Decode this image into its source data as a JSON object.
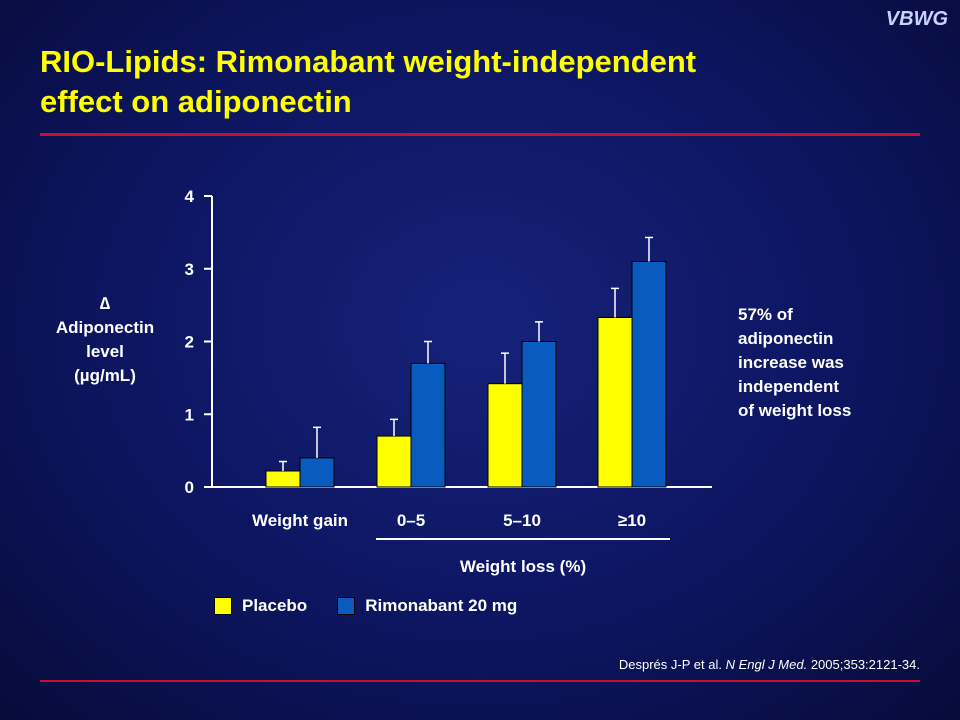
{
  "brand": "VBWG",
  "title_line1": "RIO-Lipids: Rimonabant weight-independent",
  "title_line2": "effect on adiponectin",
  "ylabel": [
    "∆",
    "Adiponectin",
    "level",
    "(µg/mL)"
  ],
  "note": [
    "57% of",
    "adiponectin",
    "increase was",
    "independent",
    "of weight loss"
  ],
  "xgroup_label": "Weight loss (%)",
  "citation": {
    "authors": "Després J-P et al. ",
    "journal": "N Engl J Med.",
    "details": " 2005;353:2121-34."
  },
  "colors": {
    "placebo": "#ffff00",
    "rimonabant": "#0a5bbf"
  },
  "chart_data": {
    "type": "bar",
    "categories": [
      "Weight gain",
      "0–5",
      "5–10",
      "≥10"
    ],
    "series": [
      {
        "name": "Placebo",
        "values": [
          0.22,
          0.7,
          1.42,
          2.33
        ],
        "error": [
          0.13,
          0.23,
          0.42,
          0.4
        ]
      },
      {
        "name": "Rimonabant 20 mg",
        "values": [
          0.4,
          1.7,
          2.0,
          3.1
        ],
        "error": [
          0.42,
          0.3,
          0.27,
          0.33
        ]
      }
    ],
    "yticks": [
      0,
      1,
      2,
      3,
      4
    ],
    "ylim": [
      0,
      4
    ],
    "ylabel": "∆ Adiponectin level (µg/mL)",
    "xlabel": "Weight loss (%)",
    "legend_position": "bottom"
  }
}
